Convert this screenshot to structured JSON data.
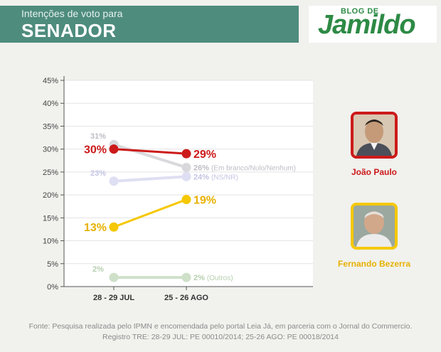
{
  "header": {
    "subtitle": "Intenções de voto para",
    "title": "SENADOR"
  },
  "logo": {
    "small": "BLOG DE",
    "big": "Jamildo"
  },
  "candidates": [
    {
      "name": "João Paulo",
      "color": "#cc1a1a"
    },
    {
      "name": "Fernando Bezerra",
      "color": "#f5c800"
    }
  ],
  "footer": {
    "line1": "Fonte: Pesquisa realizada pelo IPMN e encomendada pelo portal Leia Já, em parceria com o Jornal do Commercio.",
    "line2": "Registro TRE: 28-29 JUL: PE 00010/2014; 25-26 AGO: PE 00018/2014"
  },
  "chart_data": {
    "type": "line",
    "categories": [
      "28 - 29 JUL",
      "25 - 26 AGO"
    ],
    "ylim": [
      0,
      45
    ],
    "yticks": [
      "0%",
      "5%",
      "10%",
      "15%",
      "20%",
      "25%",
      "30%",
      "35%",
      "40%",
      "45%"
    ],
    "grid": true,
    "series": [
      {
        "name": "",
        "values": [
          31,
          26
        ],
        "labels": [
          "31%",
          "26%"
        ],
        "annotation": "(Em branco/Nulo/Nenhum)",
        "color": "#d9d9dd",
        "label_color": "#bdbdc5",
        "highlight": false
      },
      {
        "name": "",
        "values": [
          23,
          24
        ],
        "labels": [
          "23%",
          "24%"
        ],
        "annotation": "(NS/NR)",
        "color": "#dedff2",
        "label_color": "#c3c4e3",
        "highlight": false
      },
      {
        "name": "",
        "values": [
          2,
          2
        ],
        "labels": [
          "2%",
          "2%"
        ],
        "annotation": "(Outros)",
        "color": "#cfe0c9",
        "label_color": "#b6cfae",
        "highlight": false
      },
      {
        "name": "João Paulo",
        "values": [
          30,
          29
        ],
        "labels": [
          "30%",
          "29%"
        ],
        "annotation": "",
        "color": "#cc1a1a",
        "label_color": "#cc1a1a",
        "highlight": true
      },
      {
        "name": "Fernando Bezerra",
        "values": [
          13,
          19
        ],
        "labels": [
          "13%",
          "19%"
        ],
        "annotation": "",
        "color": "#f5c800",
        "label_color": "#e7b100",
        "highlight": true
      }
    ]
  }
}
